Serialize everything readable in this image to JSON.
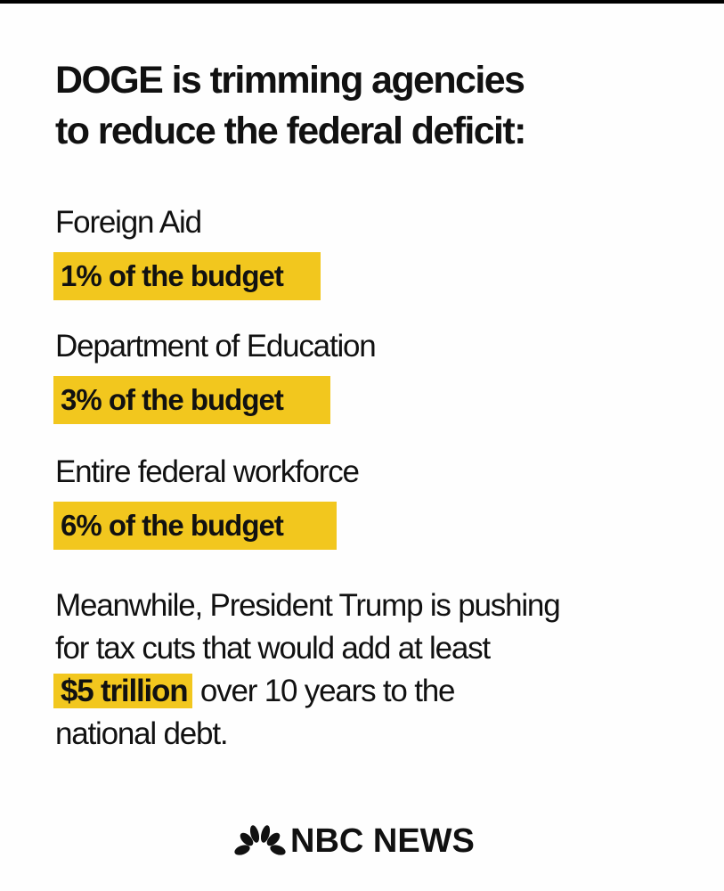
{
  "title": {
    "line1": "DOGE is trimming agencies",
    "line2": "to reduce the federal deficit:"
  },
  "items": [
    {
      "label": "Foreign Aid",
      "value": "1% of the budget",
      "percent": 1
    },
    {
      "label": "Department of Education",
      "value": "3% of the budget",
      "percent": 3
    },
    {
      "label": "Entire federal workforce",
      "value": "6% of the budget",
      "percent": 6
    }
  ],
  "paragraph": {
    "line1": "Meanwhile, President Trump is pushing",
    "line2": "for tax cuts that would add at least",
    "highlight": "$5 trillion",
    "line3_rest": " over 10 years to the",
    "line4": "national debt."
  },
  "logo": {
    "text": "NBC NEWS",
    "icon": "peacock-icon"
  },
  "colors": {
    "highlight": "#f2c71e",
    "text": "#111111",
    "background": "#fefefe"
  }
}
